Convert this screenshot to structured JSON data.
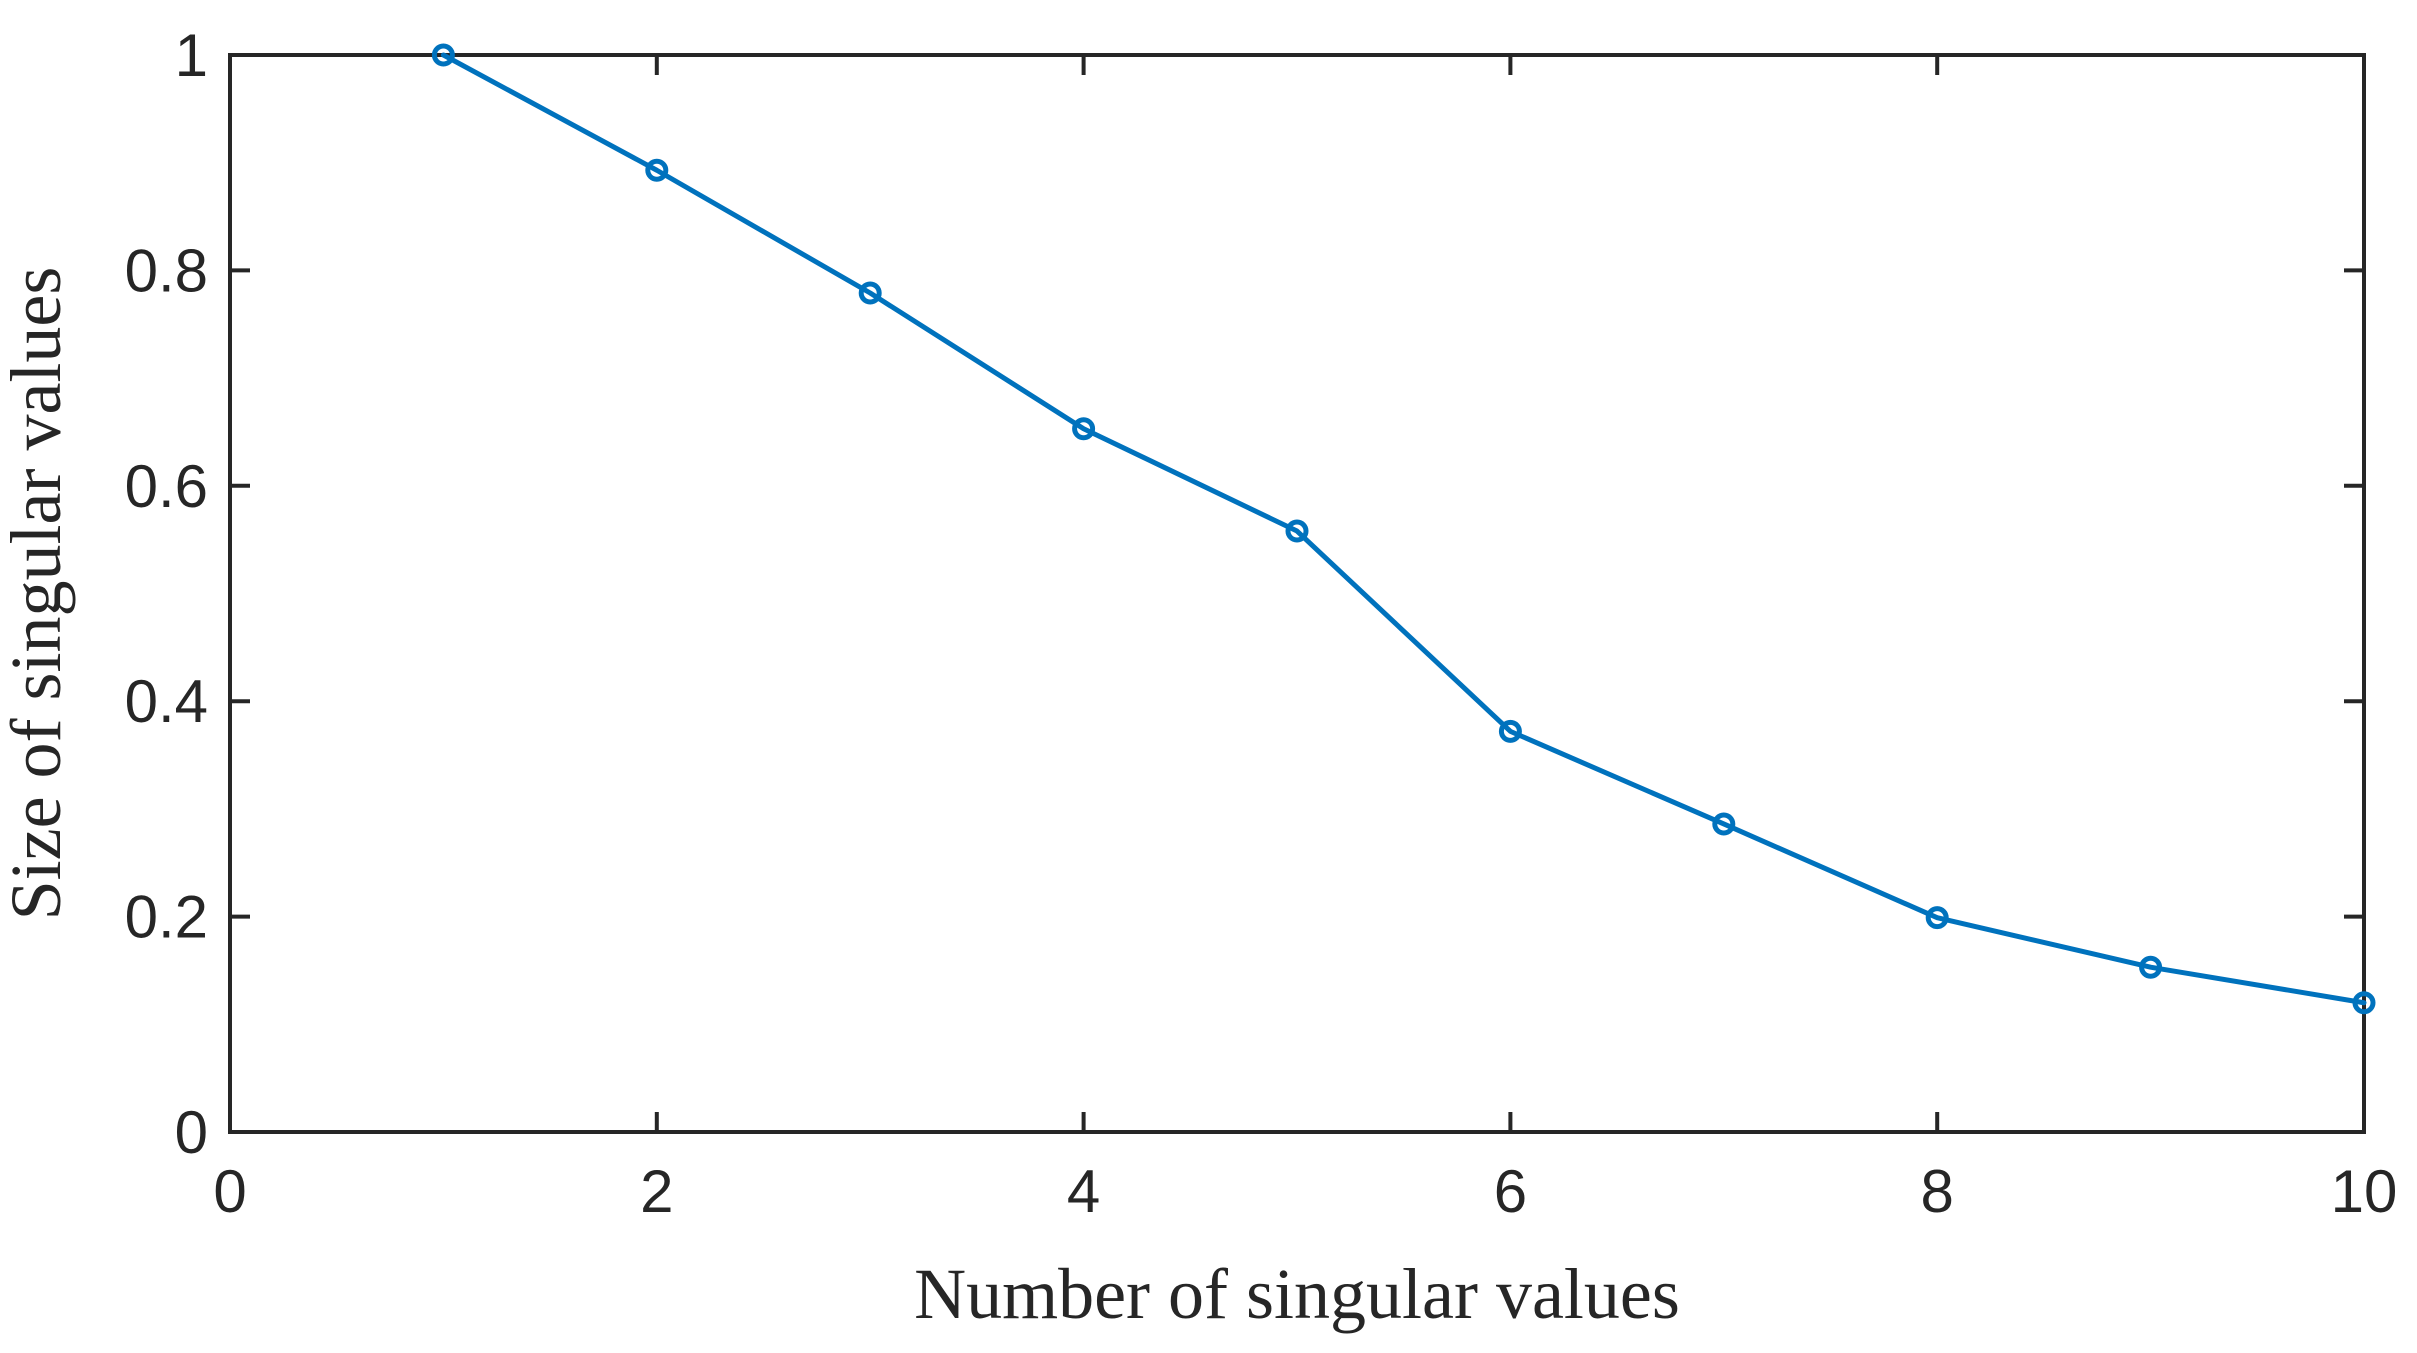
{
  "chart_data": {
    "type": "line",
    "title": "",
    "xlabel": "Number of singular values",
    "ylabel": "Size of singular values",
    "xlim": [
      0,
      10
    ],
    "ylim": [
      0,
      1
    ],
    "xticks": [
      0,
      2,
      4,
      6,
      8,
      10
    ],
    "xtick_labels": [
      "0",
      "2",
      "4",
      "6",
      "8",
      "10"
    ],
    "yticks": [
      0,
      0.2,
      0.4,
      0.6,
      0.8,
      1
    ],
    "ytick_labels": [
      "0",
      "0.2",
      "0.4",
      "0.6",
      "0.8",
      "1"
    ],
    "grid": false,
    "box": true,
    "marker": "circle",
    "series": [
      {
        "color": "#0072BD",
        "x": [
          1,
          2,
          3,
          4,
          5,
          6,
          7,
          8,
          9,
          10
        ],
        "y": [
          1.0,
          0.893,
          0.779,
          0.653,
          0.558,
          0.372,
          0.286,
          0.199,
          0.153,
          0.12
        ]
      }
    ]
  }
}
